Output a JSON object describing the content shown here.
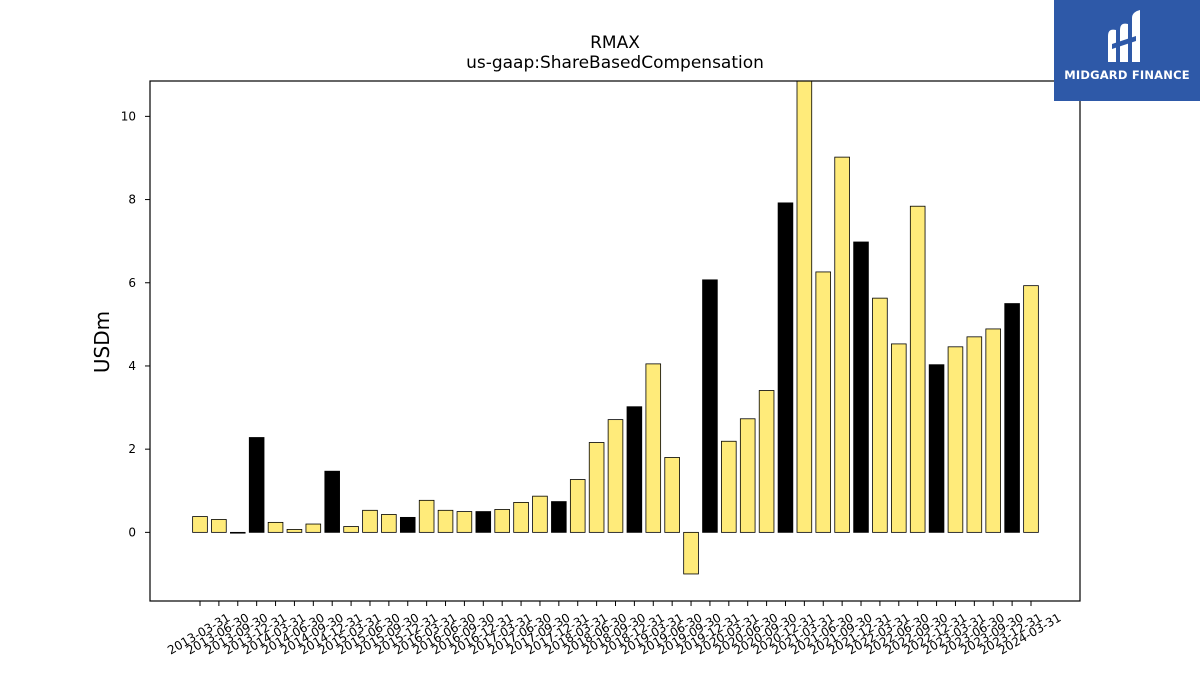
{
  "brand": {
    "name": "MIDGARD FINANCE",
    "bg_color": "#2e59a8",
    "icon": "midgard-logo-icon"
  },
  "chart_data": {
    "type": "bar",
    "title": "RMAX",
    "subtitle": "us-gaap:ShareBasedCompensation",
    "xlabel": "",
    "ylabel": "USDm",
    "ylim": [
      -1.65,
      10.85
    ],
    "yticks": [
      0,
      2,
      4,
      6,
      8,
      10
    ],
    "grid": false,
    "colors": {
      "quarterly": "#ffeb7a",
      "annual": "#000000",
      "edge": "#000000"
    },
    "categories": [
      "2013-03-31",
      "2013-06-30",
      "2013-09-30",
      "2013-12-31",
      "2014-03-31",
      "2014-06-30",
      "2014-09-30",
      "2014-12-31",
      "2015-03-31",
      "2015-06-30",
      "2015-09-30",
      "2015-12-31",
      "2016-03-31",
      "2016-06-30",
      "2016-09-30",
      "2016-12-31",
      "2017-03-31",
      "2017-06-30",
      "2017-09-30",
      "2017-12-31",
      "2018-03-31",
      "2018-06-30",
      "2018-09-30",
      "2018-12-31",
      "2019-03-31",
      "2019-06-30",
      "2019-09-30",
      "2019-12-31",
      "2020-03-31",
      "2020-06-30",
      "2020-09-30",
      "2020-12-31",
      "2021-03-31",
      "2021-06-30",
      "2021-09-30",
      "2021-12-31",
      "2022-03-31",
      "2022-06-30",
      "2022-09-30",
      "2022-12-31",
      "2023-03-31",
      "2023-06-30",
      "2023-09-30",
      "2023-12-31",
      "2024-03-31"
    ],
    "values": [
      0.38,
      0.31,
      0.0,
      2.28,
      0.24,
      0.07,
      0.2,
      1.47,
      0.14,
      0.53,
      0.43,
      0.36,
      0.77,
      0.53,
      0.5,
      0.5,
      0.55,
      0.72,
      0.87,
      0.74,
      1.27,
      2.16,
      2.71,
      3.02,
      4.05,
      1.8,
      -1.0,
      6.07,
      2.19,
      2.73,
      3.41,
      7.92,
      10.9,
      6.26,
      9.02,
      6.98,
      5.63,
      4.53,
      7.84,
      4.03,
      4.46,
      4.7,
      4.89,
      5.5,
      5.93
    ],
    "bar_colors": [
      "#ffeb7a",
      "#ffeb7a",
      "#ffeb7a",
      "#000000",
      "#ffeb7a",
      "#ffeb7a",
      "#ffeb7a",
      "#000000",
      "#ffeb7a",
      "#ffeb7a",
      "#ffeb7a",
      "#000000",
      "#ffeb7a",
      "#ffeb7a",
      "#ffeb7a",
      "#000000",
      "#ffeb7a",
      "#ffeb7a",
      "#ffeb7a",
      "#000000",
      "#ffeb7a",
      "#ffeb7a",
      "#ffeb7a",
      "#000000",
      "#ffeb7a",
      "#ffeb7a",
      "#ffeb7a",
      "#000000",
      "#ffeb7a",
      "#ffeb7a",
      "#ffeb7a",
      "#000000",
      "#ffeb7a",
      "#ffeb7a",
      "#ffeb7a",
      "#000000",
      "#ffeb7a",
      "#ffeb7a",
      "#ffeb7a",
      "#000000",
      "#ffeb7a",
      "#ffeb7a",
      "#ffeb7a",
      "#000000",
      "#ffeb7a"
    ]
  }
}
